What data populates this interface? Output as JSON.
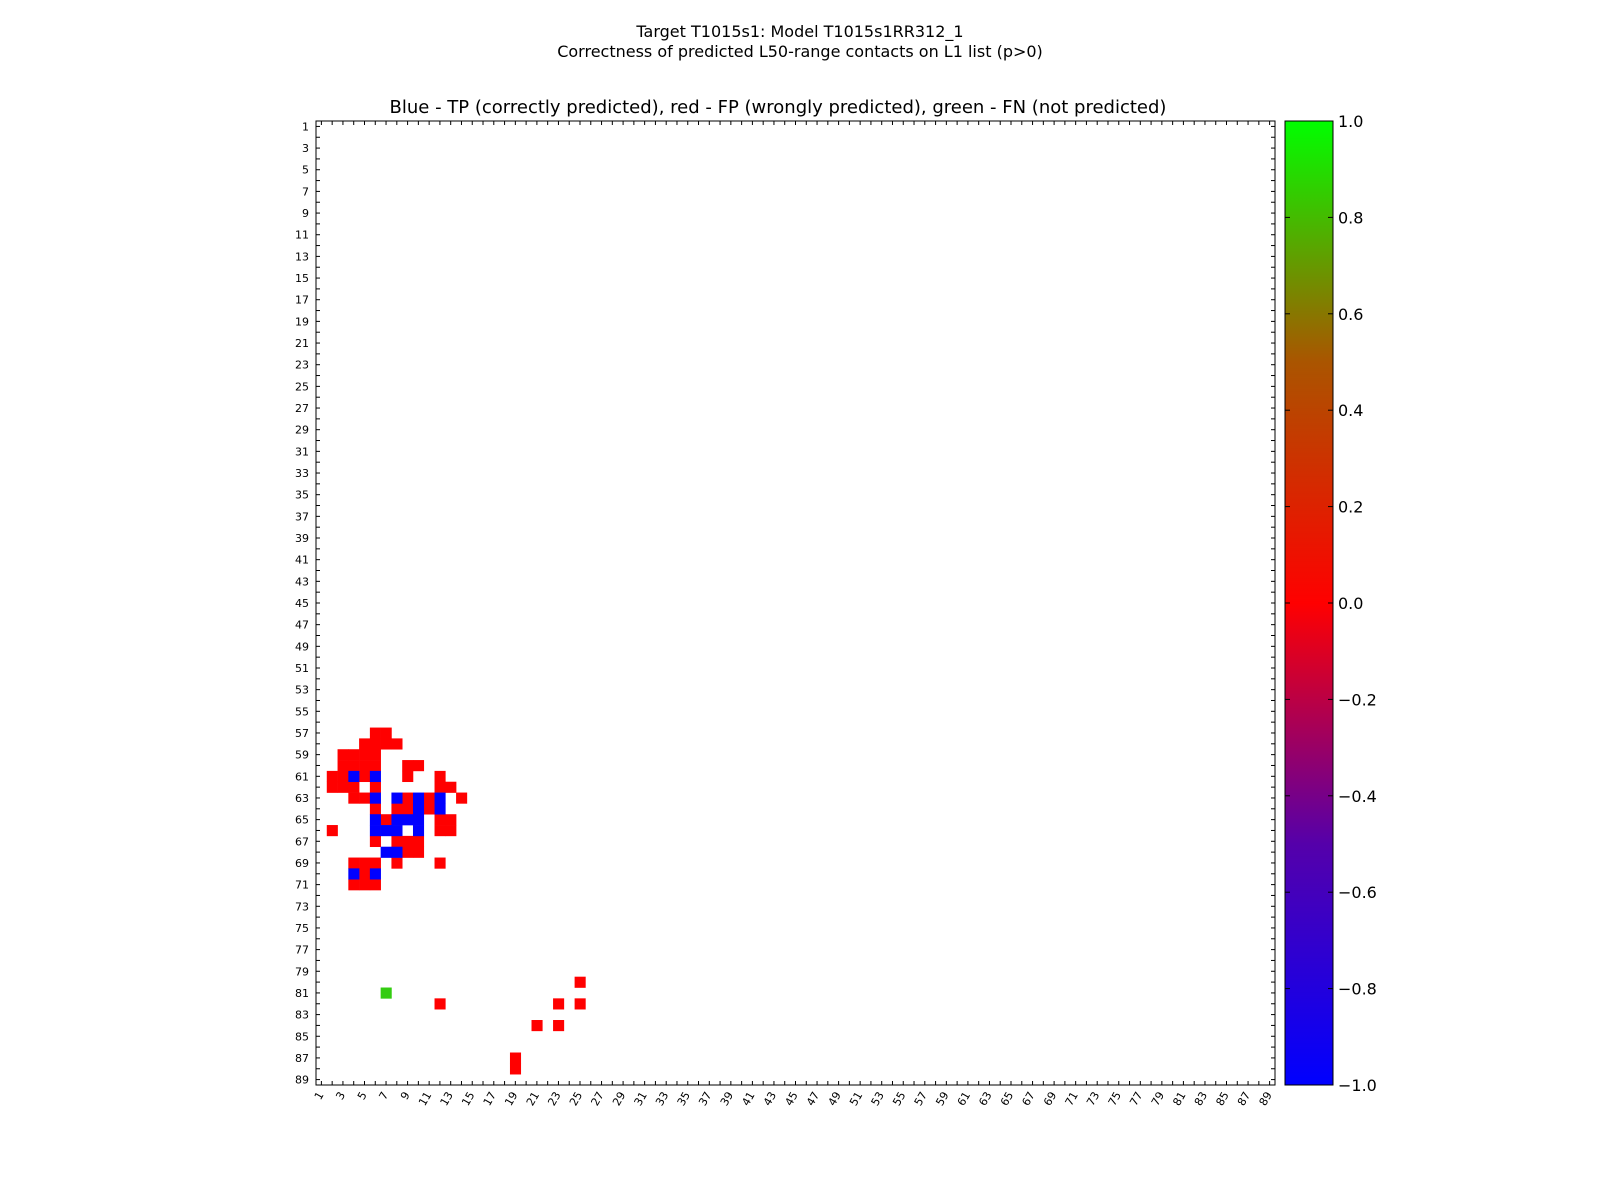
{
  "chart_data": {
    "type": "heatmap",
    "suptitle_line1": "Target T1015s1: Model T1015s1RR312_1",
    "suptitle_line2": "Correctness of predicted L50-range contacts on L1 list (p>0)",
    "title": "Blue - TP (correctly predicted), red - FP (wrongly predicted), green - FN (not predicted)",
    "n": 89,
    "x_ticks": [
      1,
      3,
      5,
      7,
      9,
      11,
      13,
      15,
      17,
      19,
      21,
      23,
      25,
      27,
      29,
      31,
      33,
      35,
      37,
      39,
      41,
      43,
      45,
      47,
      49,
      51,
      53,
      55,
      57,
      59,
      61,
      63,
      65,
      67,
      69,
      71,
      73,
      75,
      77,
      79,
      81,
      83,
      85,
      87,
      89
    ],
    "y_ticks": [
      1,
      3,
      5,
      7,
      9,
      11,
      13,
      15,
      17,
      19,
      21,
      23,
      25,
      27,
      29,
      31,
      33,
      35,
      37,
      39,
      41,
      43,
      45,
      47,
      49,
      51,
      53,
      55,
      57,
      59,
      61,
      63,
      65,
      67,
      69,
      71,
      73,
      75,
      77,
      79,
      81,
      83,
      85,
      87,
      89
    ],
    "colorbar": {
      "vmin": -1.0,
      "vmax": 1.0,
      "tick_values": [
        1.0,
        0.8,
        0.6,
        0.4,
        0.2,
        0.0,
        -0.2,
        -0.4,
        -0.6,
        -0.8,
        -1.0
      ],
      "tick_labels": [
        "1.0",
        "0.8",
        "0.6",
        "0.4",
        "0.2",
        "0.0",
        "−0.2",
        "−0.4",
        "−0.6",
        "−0.8",
        "−1.0"
      ]
    },
    "legend": {
      "tp_value": -1,
      "fp_value": 0,
      "fn_value": 0.7
    },
    "colors": {
      "tp": "#0000ff",
      "fp": "#ff0000",
      "fn": "#33cc11"
    },
    "cells_tp": [
      [
        4,
        61
      ],
      [
        6,
        61
      ],
      [
        6,
        63
      ],
      [
        8,
        63
      ],
      [
        10,
        63
      ],
      [
        12,
        63
      ],
      [
        10,
        64
      ],
      [
        12,
        64
      ],
      [
        8,
        65
      ],
      [
        9,
        65
      ],
      [
        10,
        65
      ],
      [
        6,
        65
      ],
      [
        6,
        66
      ],
      [
        7,
        66
      ],
      [
        8,
        66
      ],
      [
        10,
        66
      ],
      [
        7,
        68
      ],
      [
        8,
        68
      ],
      [
        4,
        70
      ],
      [
        6,
        70
      ]
    ],
    "cells_fp": [
      [
        6,
        57
      ],
      [
        7,
        57
      ],
      [
        5,
        58
      ],
      [
        6,
        58
      ],
      [
        7,
        58
      ],
      [
        8,
        58
      ],
      [
        4,
        59
      ],
      [
        5,
        59
      ],
      [
        6,
        59
      ],
      [
        3,
        59
      ],
      [
        3,
        60
      ],
      [
        4,
        60
      ],
      [
        5,
        60
      ],
      [
        6,
        60
      ],
      [
        9,
        60
      ],
      [
        10,
        60
      ],
      [
        2,
        61
      ],
      [
        3,
        61
      ],
      [
        5,
        61
      ],
      [
        9,
        61
      ],
      [
        12,
        61
      ],
      [
        2,
        62
      ],
      [
        3,
        62
      ],
      [
        4,
        62
      ],
      [
        6,
        62
      ],
      [
        12,
        62
      ],
      [
        13,
        62
      ],
      [
        4,
        63
      ],
      [
        5,
        63
      ],
      [
        9,
        63
      ],
      [
        11,
        63
      ],
      [
        14,
        63
      ],
      [
        6,
        64
      ],
      [
        8,
        64
      ],
      [
        9,
        64
      ],
      [
        11,
        64
      ],
      [
        7,
        65
      ],
      [
        12,
        65
      ],
      [
        13,
        65
      ],
      [
        2,
        66
      ],
      [
        12,
        66
      ],
      [
        13,
        66
      ],
      [
        6,
        67
      ],
      [
        8,
        67
      ],
      [
        9,
        67
      ],
      [
        10,
        67
      ],
      [
        9,
        68
      ],
      [
        10,
        68
      ],
      [
        4,
        69
      ],
      [
        5,
        69
      ],
      [
        6,
        69
      ],
      [
        8,
        69
      ],
      [
        12,
        69
      ],
      [
        5,
        70
      ],
      [
        4,
        71
      ],
      [
        5,
        71
      ],
      [
        6,
        71
      ],
      [
        25,
        80
      ],
      [
        12,
        82
      ],
      [
        23,
        82
      ],
      [
        25,
        82
      ],
      [
        21,
        84
      ],
      [
        23,
        84
      ],
      [
        19,
        87
      ],
      [
        19,
        88
      ]
    ],
    "cells_fn": [
      [
        7,
        81
      ]
    ]
  }
}
